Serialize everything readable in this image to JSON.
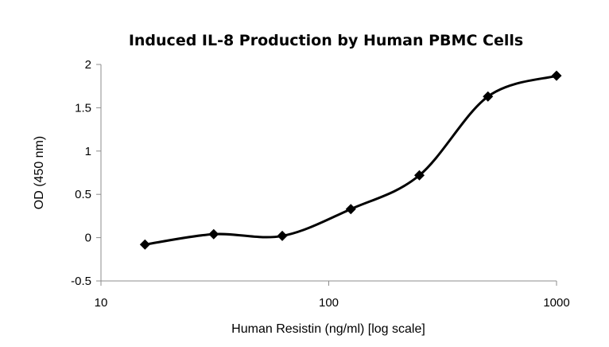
{
  "chart_data": {
    "type": "scatter",
    "title": "Induced IL-8 Production by Human PBMC Cells",
    "xlabel": "Human Resistin (ng/ml) [log scale]",
    "ylabel": "OD (450 nm)",
    "xscale": "log",
    "xlim": [
      10,
      1000
    ],
    "ylim": [
      -0.5,
      2
    ],
    "xticks": [
      10,
      100,
      1000
    ],
    "xtick_labels": [
      "10",
      "100",
      "1000"
    ],
    "yticks": [
      -0.5,
      0,
      0.5,
      1,
      1.5,
      2
    ],
    "ytick_labels": [
      "-0.5",
      "0",
      "0.5",
      "1",
      "1.5",
      "2"
    ],
    "grid": false,
    "legend": "none",
    "smooth_line": true,
    "series": [
      {
        "marker": "diamond",
        "color": "#000000",
        "x": [
          15.6,
          31.25,
          62.5,
          125,
          250,
          500,
          1000
        ],
        "y": [
          -0.08,
          0.04,
          0.02,
          0.33,
          0.72,
          1.63,
          1.87
        ]
      }
    ]
  }
}
